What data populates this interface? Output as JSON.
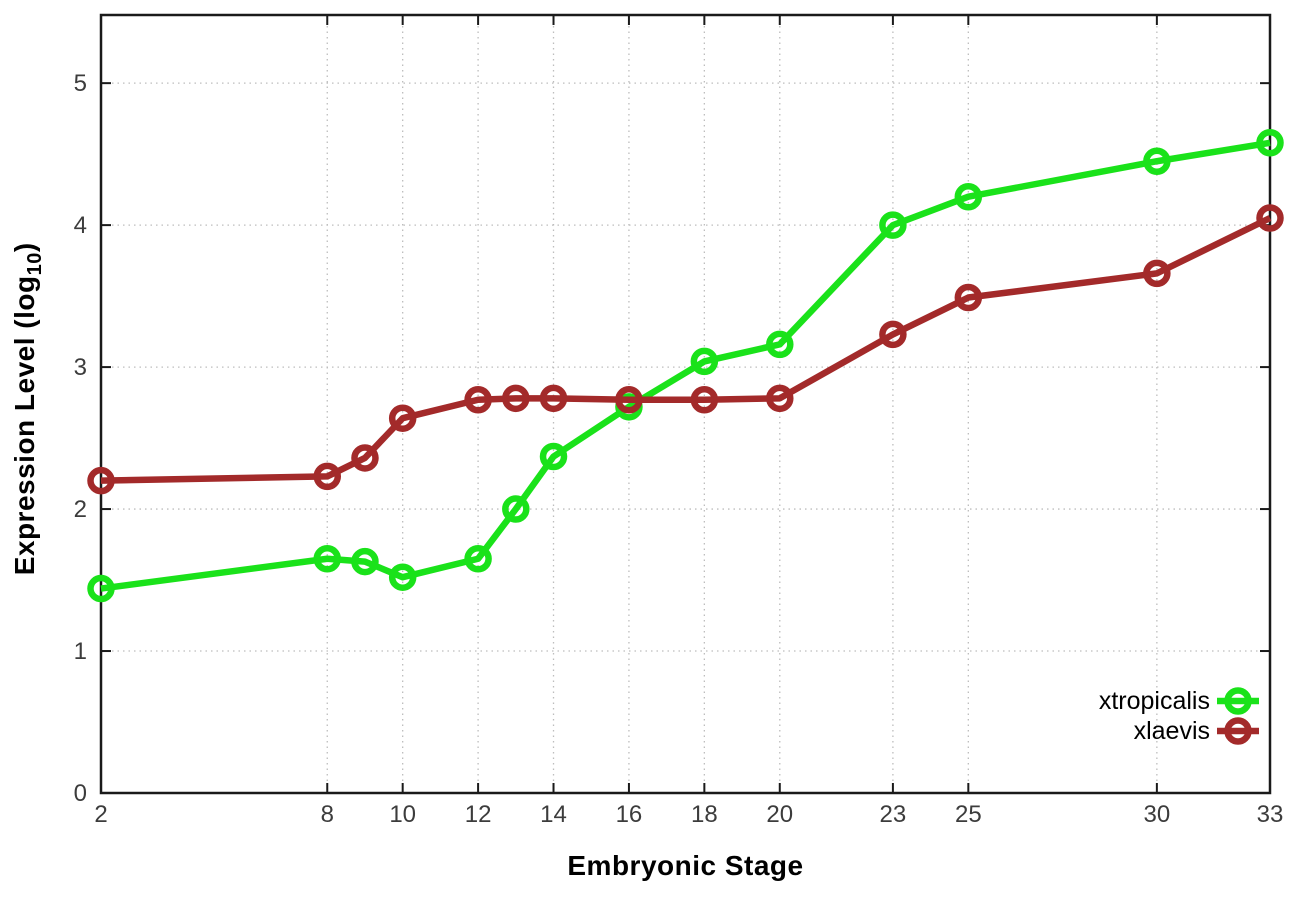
{
  "chart_data": {
    "type": "line",
    "title": "",
    "xlabel": "Embryonic Stage",
    "ylabel": {
      "pre": "Expression Level (log",
      "sub": "10",
      "post": ")"
    },
    "xlim": [
      2,
      33
    ],
    "ylim": [
      0,
      5.48
    ],
    "xticks": [
      2,
      8,
      10,
      12,
      14,
      16,
      18,
      20,
      23,
      25,
      30,
      33
    ],
    "yticks": [
      0,
      1,
      2,
      3,
      4,
      5
    ],
    "grid": true,
    "legend_position": "inside-bottom-right",
    "x": [
      2,
      8,
      9,
      10,
      12,
      13,
      14,
      16,
      18,
      20,
      23,
      25,
      30,
      33
    ],
    "series": [
      {
        "name": "xtropicalis",
        "color": "#1ae21a",
        "values": [
          1.44,
          1.65,
          1.63,
          1.52,
          1.65,
          2.0,
          2.37,
          2.72,
          3.04,
          3.16,
          4.0,
          4.2,
          4.45,
          4.58
        ]
      },
      {
        "name": "xlaevis",
        "color": "#a32a2a",
        "values": [
          2.2,
          2.23,
          2.36,
          2.64,
          2.77,
          2.78,
          2.78,
          2.77,
          2.77,
          2.78,
          3.23,
          3.49,
          3.66,
          4.05
        ]
      }
    ],
    "colors": {
      "border": "#1a1a1a",
      "grid": "#bdbdbd",
      "tick_text": "#3c3c3c",
      "axis_title_text": "#000000"
    }
  }
}
